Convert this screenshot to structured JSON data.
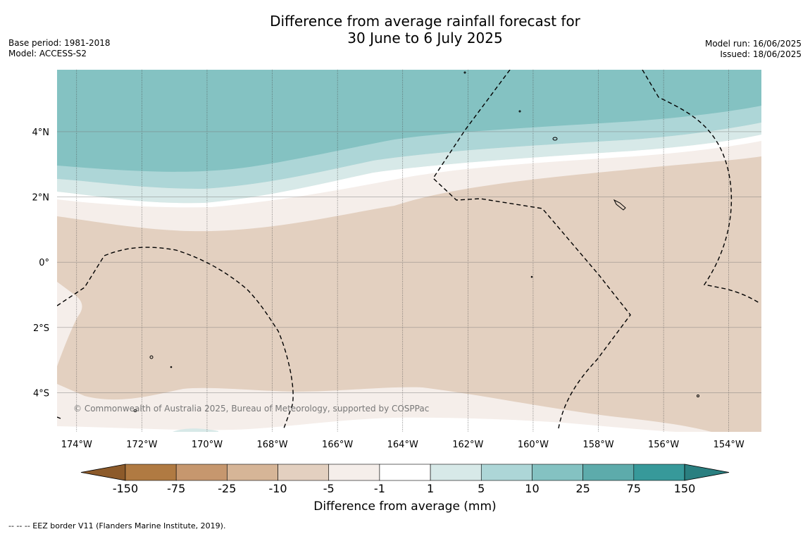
{
  "title": {
    "line1": "Difference from average rainfall forecast for",
    "line2": "30 June to 6 July 2025"
  },
  "meta_left": {
    "base_period": "Base period: 1981-2018",
    "model": "Model: ACCESS-S2"
  },
  "meta_right": {
    "model_run": "Model run: 16/06/2025",
    "issued": "Issued: 18/06/2025"
  },
  "map": {
    "copyright": "© Commonwealth of Australia 2025, Bureau of Meteorology, supported by COSPPac",
    "lon_range": [
      -174.6,
      -153.0
    ],
    "lat_range": [
      -5.2,
      5.9
    ],
    "lon_ticks": [
      {
        "value": -174,
        "label": "174°W"
      },
      {
        "value": -172,
        "label": "172°W"
      },
      {
        "value": -170,
        "label": "170°W"
      },
      {
        "value": -168,
        "label": "168°W"
      },
      {
        "value": -166,
        "label": "166°W"
      },
      {
        "value": -164,
        "label": "164°W"
      },
      {
        "value": -162,
        "label": "162°W"
      },
      {
        "value": -160,
        "label": "160°W"
      },
      {
        "value": -158,
        "label": "158°W"
      },
      {
        "value": -156,
        "label": "156°W"
      },
      {
        "value": -154,
        "label": "154°W"
      }
    ],
    "lat_ticks": [
      {
        "value": 4,
        "label": "4°N"
      },
      {
        "value": 2,
        "label": "2°N"
      },
      {
        "value": 0,
        "label": "0°"
      },
      {
        "value": -2,
        "label": "2°S"
      },
      {
        "value": -4,
        "label": "4°S"
      }
    ]
  },
  "colorbar": {
    "label": "Difference from average (mm)",
    "ticks": [
      "-150",
      "-75",
      "-25",
      "-10",
      "-5",
      "-1",
      "1",
      "5",
      "10",
      "25",
      "75",
      "150"
    ],
    "colors": [
      "#8c5a2a",
      "#b07a42",
      "#c6976e",
      "#d6b597",
      "#e3d0c0",
      "#f5eeea",
      "#ffffff",
      "#d7e9e8",
      "#add6d7",
      "#84c2c2",
      "#5dabab",
      "#37999a",
      "#2a7f80"
    ]
  },
  "footer": "--  --  -- EEZ border V11 (Flanders Marine Institute, 2019)."
}
